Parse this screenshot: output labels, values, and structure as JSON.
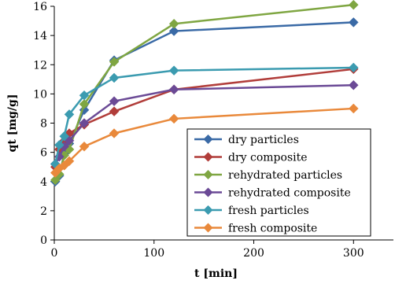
{
  "chart_data": {
    "type": "line",
    "title": "",
    "xlabel": "t [min]",
    "ylabel": "qt [mg/g]",
    "xlim": [
      0,
      340
    ],
    "ylim": [
      0,
      16
    ],
    "xticks": [
      0,
      100,
      200,
      300
    ],
    "yticks": [
      0,
      2,
      4,
      6,
      8,
      10,
      12,
      14,
      16
    ],
    "grid": false,
    "legend_position": "bottom-right",
    "series": [
      {
        "name": "dry particles",
        "color": "#3a6aa6",
        "marker": "diamond",
        "x": [
          1,
          5,
          10,
          15,
          30,
          60,
          120,
          300
        ],
        "y": [
          4.0,
          4.4,
          5.9,
          6.6,
          8.9,
          12.3,
          14.3,
          14.9
        ]
      },
      {
        "name": "dry composite",
        "color": "#b13d3a",
        "marker": "diamond",
        "x": [
          1,
          5,
          10,
          15,
          30,
          60,
          120,
          300
        ],
        "y": [
          5.0,
          6.2,
          6.8,
          7.3,
          7.9,
          8.8,
          10.3,
          11.7
        ]
      },
      {
        "name": "rehydrated particles",
        "color": "#7fa642",
        "marker": "diamond",
        "x": [
          1,
          5,
          10,
          15,
          30,
          60,
          120,
          300
        ],
        "y": [
          4.1,
          4.5,
          5.8,
          6.2,
          9.3,
          12.2,
          14.8,
          16.1
        ]
      },
      {
        "name": "rehydrated composite",
        "color": "#6b4a96",
        "marker": "diamond",
        "x": [
          1,
          5,
          10,
          15,
          30,
          60,
          120,
          300
        ],
        "y": [
          5.2,
          5.7,
          6.4,
          6.8,
          8.0,
          9.5,
          10.3,
          10.6
        ]
      },
      {
        "name": "fresh particles",
        "color": "#3b9bb0",
        "marker": "diamond",
        "x": [
          1,
          5,
          10,
          15,
          30,
          60,
          120,
          300
        ],
        "y": [
          5.2,
          6.5,
          7.1,
          8.6,
          9.9,
          11.1,
          11.6,
          11.8
        ]
      },
      {
        "name": "fresh composite",
        "color": "#e9893b",
        "marker": "diamond",
        "x": [
          1,
          5,
          10,
          15,
          30,
          60,
          120,
          300
        ],
        "y": [
          4.6,
          4.9,
          5.1,
          5.4,
          6.4,
          7.3,
          8.3,
          9.0
        ]
      }
    ]
  }
}
